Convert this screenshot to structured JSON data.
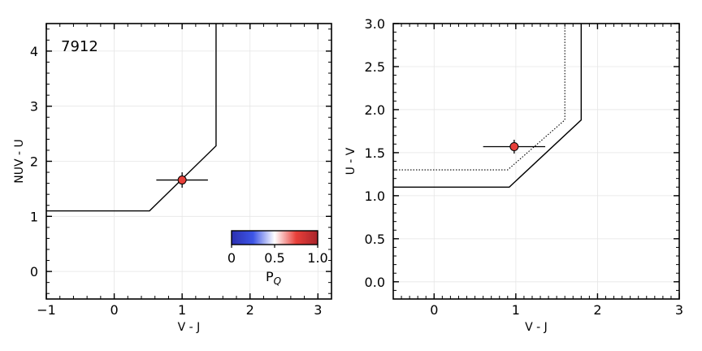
{
  "chart_data": [
    {
      "type": "scatter",
      "annotation": "7912",
      "xlabel": "V - J",
      "ylabel": "NUV - U",
      "xlim": [
        -1,
        3.2
      ],
      "ylim": [
        -0.5,
        4.5
      ],
      "xticks": [
        -1,
        0,
        1,
        2,
        3
      ],
      "xtick_labels": [
        "−1",
        "0",
        "1",
        "2",
        "3"
      ],
      "yticks": [
        0,
        1,
        2,
        3,
        4
      ],
      "ytick_labels": [
        "0",
        "1",
        "2",
        "3",
        "4"
      ],
      "grid": true,
      "boundary_line": [
        [
          -1,
          1.1
        ],
        [
          0.52,
          1.1
        ],
        [
          1.5,
          2.28
        ],
        [
          1.5,
          4.5
        ]
      ],
      "points": [
        {
          "x": 1.0,
          "y": 1.66,
          "xerr": 0.38,
          "yerr": 0.14,
          "color": "#e8403a"
        }
      ],
      "colorbar": {
        "label": "P",
        "label_sub": "Q",
        "ticks": [
          0,
          0.5,
          1.0
        ],
        "tick_labels": [
          "0",
          "0.5",
          "1.0"
        ],
        "colormap": "bwr",
        "colors": [
          "#2b2fb0",
          "#3d55e6",
          "#ffffff",
          "#e8403a",
          "#a8232a"
        ]
      }
    },
    {
      "type": "scatter",
      "xlabel": "V - J",
      "ylabel": "U - V",
      "xlim": [
        -0.5,
        3
      ],
      "ylim": [
        -0.2,
        3.0
      ],
      "xticks": [
        0,
        1,
        2,
        3
      ],
      "xtick_labels": [
        "0",
        "1",
        "2",
        "3"
      ],
      "yticks": [
        0,
        0.5,
        1.0,
        1.5,
        2.0,
        2.5,
        3.0
      ],
      "ytick_labels": [
        "0.0",
        "0.5",
        "1.0",
        "1.5",
        "2.0",
        "2.5",
        "3.0"
      ],
      "grid": true,
      "boundary_line": [
        [
          -0.5,
          1.1
        ],
        [
          0.92,
          1.1
        ],
        [
          1.8,
          1.88
        ],
        [
          1.8,
          3.0
        ]
      ],
      "boundary_line_dotted": [
        [
          -0.5,
          1.3
        ],
        [
          0.9,
          1.3
        ],
        [
          1.6,
          1.88
        ],
        [
          1.6,
          3.0
        ]
      ],
      "points": [
        {
          "x": 0.98,
          "y": 1.57,
          "xerr": 0.38,
          "yerr": 0.08,
          "color": "#e8403a"
        }
      ]
    }
  ]
}
